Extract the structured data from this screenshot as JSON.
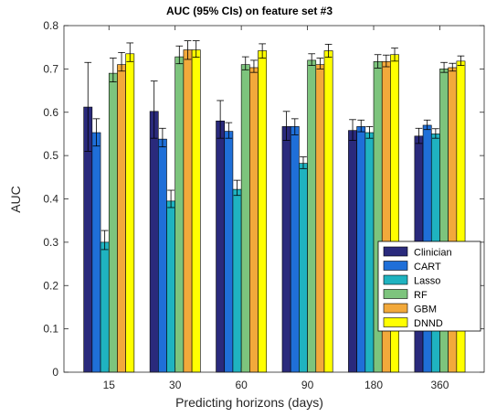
{
  "chart_data": {
    "type": "bar",
    "title": "AUC (95% CIs) on feature set #3",
    "xlabel": "Predicting horizons (days)",
    "ylabel": "AUC",
    "ylim": [
      0,
      0.8
    ],
    "yticks": [
      "0",
      "0.1",
      "0.2",
      "0.3",
      "0.4",
      "0.5",
      "0.6",
      "0.7",
      "0.8"
    ],
    "categories": [
      "15",
      "30",
      "60",
      "90",
      "180",
      "360"
    ],
    "legend_position": "bottom-right",
    "grid": false,
    "series": [
      {
        "name": "Clinician",
        "color": "#2a2a7c",
        "values": [
          0.612,
          0.602,
          0.58,
          0.567,
          0.558,
          0.545
        ],
        "lower": [
          0.51,
          0.54,
          0.54,
          0.535,
          0.535,
          0.528
        ],
        "upper": [
          0.715,
          0.672,
          0.627,
          0.602,
          0.583,
          0.563
        ]
      },
      {
        "name": "CART",
        "color": "#1f6fd8",
        "values": [
          0.553,
          0.538,
          0.556,
          0.567,
          0.567,
          0.57
        ],
        "lower": [
          0.522,
          0.52,
          0.54,
          0.548,
          0.555,
          0.56
        ],
        "upper": [
          0.585,
          0.563,
          0.576,
          0.585,
          0.582,
          0.582
        ]
      },
      {
        "name": "Lasso",
        "color": "#1fb3c0",
        "values": [
          0.3,
          0.395,
          0.422,
          0.482,
          0.553,
          0.55
        ],
        "lower": [
          0.283,
          0.38,
          0.408,
          0.47,
          0.54,
          0.54
        ],
        "upper": [
          0.327,
          0.42,
          0.443,
          0.497,
          0.567,
          0.562
        ]
      },
      {
        "name": "RF",
        "color": "#7dc47d",
        "values": [
          0.69,
          0.728,
          0.71,
          0.72,
          0.717,
          0.7
        ],
        "lower": [
          0.67,
          0.712,
          0.698,
          0.708,
          0.702,
          0.692
        ],
        "upper": [
          0.725,
          0.753,
          0.728,
          0.735,
          0.733,
          0.715
        ]
      },
      {
        "name": "GBM",
        "color": "#f2a93b",
        "values": [
          0.71,
          0.744,
          0.703,
          0.71,
          0.717,
          0.703
        ],
        "lower": [
          0.695,
          0.722,
          0.692,
          0.7,
          0.705,
          0.695
        ],
        "upper": [
          0.738,
          0.765,
          0.72,
          0.725,
          0.732,
          0.713
        ]
      },
      {
        "name": "DNND",
        "color": "#ffff00",
        "values": [
          0.735,
          0.744,
          0.742,
          0.742,
          0.733,
          0.718
        ],
        "lower": [
          0.717,
          0.727,
          0.725,
          0.727,
          0.718,
          0.708
        ],
        "upper": [
          0.76,
          0.765,
          0.758,
          0.757,
          0.748,
          0.73
        ]
      }
    ]
  }
}
